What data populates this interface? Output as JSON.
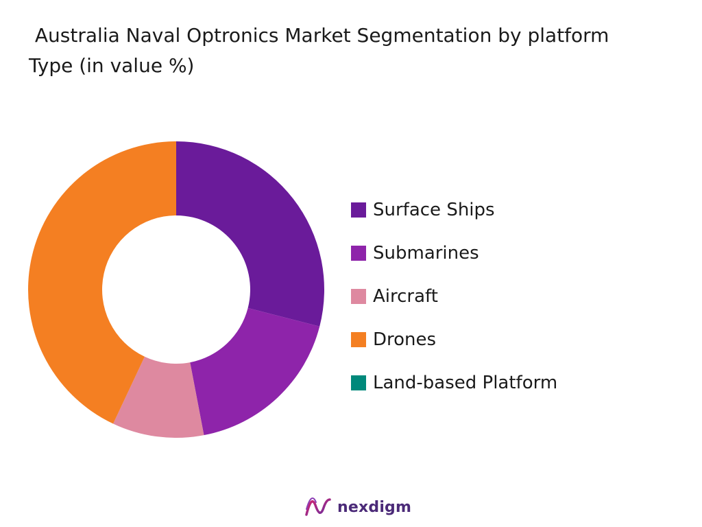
{
  "chart_data": {
    "type": "pie",
    "donut": true,
    "title": " Australia Naval Optronics Market Segmentation by platform Type (in value %)",
    "categories": [
      "Surface Ships",
      "Submarines",
      "Aircraft",
      "Drones",
      "Land-based Platform"
    ],
    "values": [
      29,
      18,
      10,
      43,
      0
    ],
    "colors": [
      "#6a1b9a",
      "#8e24aa",
      "#de89a0",
      "#f47f22",
      "#00897b"
    ],
    "legend_position": "right"
  },
  "brand": {
    "name": "nexdigm",
    "color": "#4b2a78"
  }
}
